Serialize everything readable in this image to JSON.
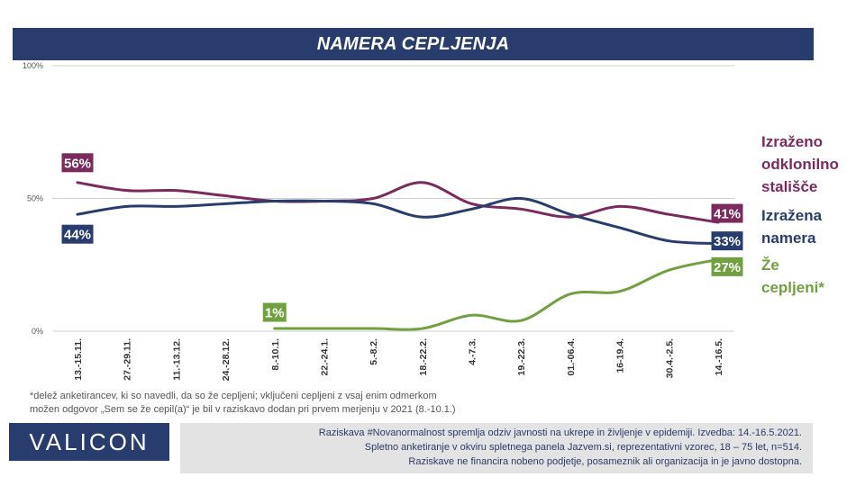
{
  "title": "NAMERA CEPLJENJA",
  "chart_data": {
    "type": "line",
    "categories": [
      "13.-15.11.",
      "27.-29.11.",
      "11.-13.12.",
      "24.-28.12.",
      "8.-10.1.",
      "22.-24.1.",
      "5.-8.2.",
      "18.-22.2.",
      "4.-7.3.",
      "19.-22.3.",
      "01.-06.4.",
      "16-19.4.",
      "30.4.-2.5.",
      "14.-16.5."
    ],
    "ylim": [
      0,
      100
    ],
    "yticks": [
      "0%",
      "50%",
      "100%"
    ],
    "grid": true,
    "series": [
      {
        "name": "Izraženo odklonilno stališče",
        "color": "#7b2a5e",
        "values": [
          56,
          53,
          53,
          51,
          49,
          49,
          50,
          56,
          48,
          46,
          43,
          47,
          44,
          41
        ]
      },
      {
        "name": "Izražena namera",
        "color": "#283d6e",
        "values": [
          44,
          47,
          47,
          48,
          49,
          49,
          48,
          43,
          46,
          50,
          44,
          39,
          34,
          33
        ]
      },
      {
        "name": "Že cepljeni*",
        "color": "#70a040",
        "values": [
          null,
          null,
          null,
          null,
          1,
          1,
          1,
          1,
          6,
          4,
          14,
          15,
          23,
          27
        ]
      }
    ],
    "labels": [
      {
        "series": 0,
        "index": 0,
        "text": "56%"
      },
      {
        "series": 1,
        "index": 0,
        "text": "44%"
      },
      {
        "series": 2,
        "index": 4,
        "text": "1%"
      },
      {
        "series": 0,
        "index": 13,
        "text": "41%"
      },
      {
        "series": 1,
        "index": 13,
        "text": "33%"
      },
      {
        "series": 2,
        "index": 13,
        "text": "27%"
      }
    ]
  },
  "legend": {
    "odklonilno": [
      "Izraženo",
      "odklonilno",
      "stališče"
    ],
    "namera": [
      "Izražena",
      "namera"
    ],
    "cepljeni": [
      "Že",
      "cepljeni*"
    ]
  },
  "footnote": {
    "line1": "*delež anketirancev, ki so navedli, da so že cepljeni; vključeni cepljeni z vsaj enim odmerkom",
    "line2": "možen  odgovor „Sem  se že cepil(a)“ je bil v raziskavo dodan pri prvem merjenju v 2021 (8.-10.1.)"
  },
  "logo": "VALICON",
  "source": {
    "line1": "Raziskava #Novanormalnost spremlja odziv javnosti na ukrepe in življenje v epidemiji. Izvedba: 14.-16.5.2021.",
    "line2": "Spletno anketiranje v okviru spletnega panela Jazvem.si, reprezentativni vzorec, 18 – 75 let, n=514.",
    "line3": "Raziskave ne financira nobeno podjetje, posameznik ali organizacija in je javno dostopna."
  }
}
